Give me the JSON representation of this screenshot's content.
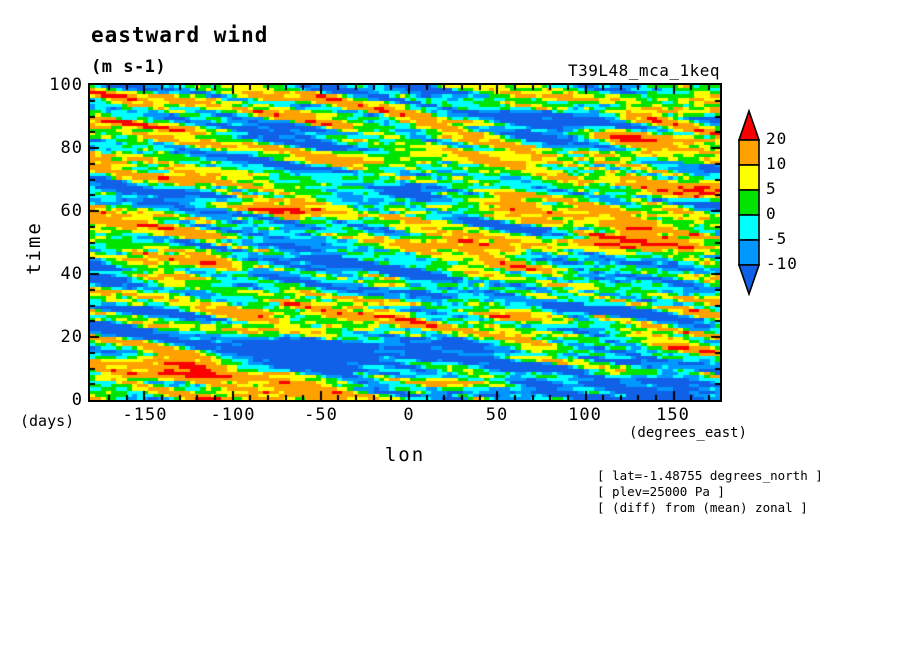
{
  "header": {
    "title": "eastward wind",
    "units": "(m s-1)",
    "run_label": "T39L48_mca_1keq"
  },
  "axes": {
    "y": {
      "label": "time",
      "unit_label": "(days)",
      "ticks": [
        "100",
        "80",
        "60",
        "40",
        "20",
        "0"
      ],
      "major_step": 20,
      "minor_step": 5,
      "range": [
        0,
        100
      ]
    },
    "x": {
      "label": "lon",
      "unit_label": "(degrees_east)",
      "ticks": [
        "-150",
        "-100",
        "-50",
        "0",
        "50",
        "100",
        "150"
      ],
      "major_step": 50,
      "minor_step": 10,
      "range": [
        -180,
        177
      ]
    }
  },
  "colorbar": {
    "labels": [
      "20",
      "10",
      "5",
      "0",
      "-5",
      "-10"
    ],
    "over_color": "#FA0000",
    "under_color": "#1060E8"
  },
  "annotations": {
    "line1": "[ lat=-1.48755 degrees_north ]",
    "line2": "[ plev=25000 Pa ]",
    "line3": "[ (diff) from (mean) zonal ]"
  },
  "chart_data": {
    "type": "heatmap",
    "title": "eastward wind",
    "units": "m s-1",
    "xlabel": "lon (degrees_east)",
    "ylabel": "time (days)",
    "x_range": [
      -180,
      177
    ],
    "y_range": [
      0,
      100
    ],
    "grid": {
      "ncols": 120,
      "nrows": 100
    },
    "levels": [
      -10,
      -5,
      0,
      5,
      10,
      20
    ],
    "level_colors": [
      "#1060E8",
      "#0098FF",
      "#00FFFF",
      "#00E400",
      "#FFFF00",
      "#FFA100",
      "#FA0000"
    ],
    "frame_color": "#000000",
    "legend_position": "right",
    "field": {
      "synthetic_texture": true,
      "seed": 77,
      "shear_deg_per_day": 10,
      "octaves": [
        {
          "sx": 13,
          "sy": 5.5,
          "amp": 19
        },
        {
          "sx": 5,
          "sy": 2.6,
          "amp": 12
        },
        {
          "sx": 2.2,
          "sy": 1.4,
          "amp": 7
        }
      ]
    }
  }
}
